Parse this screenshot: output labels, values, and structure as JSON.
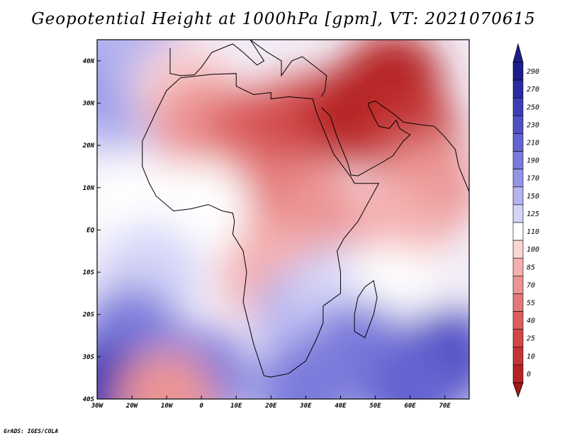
{
  "title": "Geopotential Height at 1000hPa [gpm], VT: 2021070615",
  "credit": "GrADS: IGES/COLA",
  "map": {
    "projection": "lat-lon",
    "lon_range": [
      -30,
      77
    ],
    "lat_range": [
      -40,
      45
    ],
    "lat_labels": [
      {
        "lat": 40,
        "text": "40N"
      },
      {
        "lat": 30,
        "text": "30N"
      },
      {
        "lat": 20,
        "text": "20N"
      },
      {
        "lat": 10,
        "text": "10N"
      },
      {
        "lat": 0,
        "text": "EQ"
      },
      {
        "lat": -10,
        "text": "10S"
      },
      {
        "lat": -20,
        "text": "20S"
      },
      {
        "lat": -30,
        "text": "30S"
      },
      {
        "lat": -40,
        "text": "40S"
      }
    ],
    "lon_labels": [
      {
        "lon": -30,
        "text": "30W"
      },
      {
        "lon": -20,
        "text": "20W"
      },
      {
        "lon": -10,
        "text": "10W"
      },
      {
        "lon": 0,
        "text": "0"
      },
      {
        "lon": 10,
        "text": "10E"
      },
      {
        "lon": 20,
        "text": "20E"
      },
      {
        "lon": 30,
        "text": "30E"
      },
      {
        "lon": 40,
        "text": "40E"
      },
      {
        "lon": 50,
        "text": "50E"
      },
      {
        "lon": 60,
        "text": "60E"
      },
      {
        "lon": 70,
        "text": "70E"
      }
    ]
  },
  "colorbar": {
    "levels": [
      {
        "text": "290",
        "color": "#1c1c8c"
      },
      {
        "text": "270",
        "color": "#2b2ba3"
      },
      {
        "text": "250",
        "color": "#3e3eb4"
      },
      {
        "text": "230",
        "color": "#5050c4"
      },
      {
        "text": "210",
        "color": "#6464d2"
      },
      {
        "text": "190",
        "color": "#7a7adc"
      },
      {
        "text": "170",
        "color": "#9494e6"
      },
      {
        "text": "150",
        "color": "#b4b4f0"
      },
      {
        "text": "125",
        "color": "#d4d4f8"
      },
      {
        "text": "110",
        "color": "#ffffff"
      },
      {
        "text": "100",
        "color": "#fbd4d4"
      },
      {
        "text": "85",
        "color": "#f4b0b0"
      },
      {
        "text": "70",
        "color": "#ec9494"
      },
      {
        "text": "55",
        "color": "#e47878"
      },
      {
        "text": "40",
        "color": "#dc5e5e"
      },
      {
        "text": "25",
        "color": "#d14848"
      },
      {
        "text": "10",
        "color": "#c43434"
      },
      {
        "text": "0",
        "color": "#b52222"
      }
    ],
    "top_color": "#1c1c8c",
    "bottom_color": "#a31818"
  },
  "field_regions": [
    {
      "lon": -25,
      "lat": 30,
      "value": 150
    },
    {
      "lon": -28,
      "lat": 38,
      "value": 180
    },
    {
      "lon": -18,
      "lat": 42,
      "value": 150
    },
    {
      "lon": -5,
      "lat": 33,
      "value": 100
    },
    {
      "lon": 0,
      "lat": 25,
      "value": 70
    },
    {
      "lon": 15,
      "lat": 22,
      "value": 40
    },
    {
      "lon": 20,
      "lat": 15,
      "value": 30
    },
    {
      "lon": 30,
      "lat": 25,
      "value": 25
    },
    {
      "lon": 45,
      "lat": 28,
      "value": 5
    },
    {
      "lon": 55,
      "lat": 35,
      "value": 0
    },
    {
      "lon": 60,
      "lat": 22,
      "value": 20
    },
    {
      "lon": 65,
      "lat": 10,
      "value": 70
    },
    {
      "lon": 55,
      "lat": 0,
      "value": 90
    },
    {
      "lon": 30,
      "lat": 5,
      "value": 80
    },
    {
      "lon": 10,
      "lat": 10,
      "value": 60
    },
    {
      "lon": 0,
      "lat": 5,
      "value": 110
    },
    {
      "lon": -20,
      "lat": 5,
      "value": 115
    },
    {
      "lon": -15,
      "lat": -10,
      "value": 140
    },
    {
      "lon": 20,
      "lat": -10,
      "value": 95
    },
    {
      "lon": 30,
      "lat": -20,
      "value": 160
    },
    {
      "lon": 40,
      "lat": -15,
      "value": 130
    },
    {
      "lon": 55,
      "lat": -15,
      "value": 110
    },
    {
      "lon": 45,
      "lat": -28,
      "value": 200
    },
    {
      "lon": 70,
      "lat": -30,
      "value": 230
    },
    {
      "lon": -20,
      "lat": -25,
      "value": 200
    },
    {
      "lon": -28,
      "lat": -38,
      "value": 260
    },
    {
      "lon": 0,
      "lat": -35,
      "value": 190
    },
    {
      "lon": 30,
      "lat": -38,
      "value": 200
    },
    {
      "lon": -10,
      "lat": -40,
      "value": 80
    },
    {
      "lon": 60,
      "lat": -38,
      "value": 220
    }
  ]
}
